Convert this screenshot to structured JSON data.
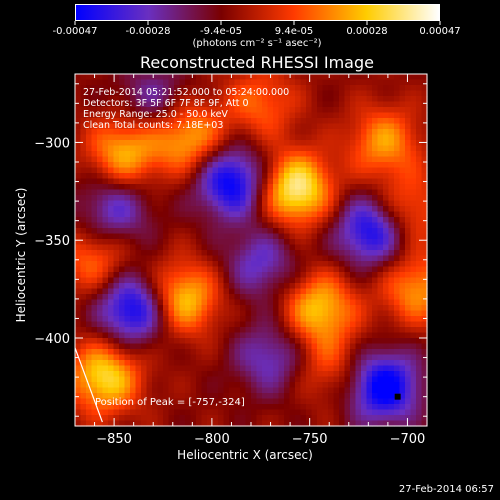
{
  "colorbar": {
    "units": "(photons cm⁻² s⁻¹ asec⁻²)",
    "tick_labels": [
      "-0.00047",
      "-0.00028",
      "-9.4e-05",
      "9.4e-05",
      "0.00028",
      "0.00047"
    ],
    "range": [
      -0.00047,
      0.00047
    ],
    "colors": [
      "#0000ff",
      "#6a2fc0",
      "#7a0000",
      "#ff3a00",
      "#ffcc00",
      "#ffffff"
    ]
  },
  "footer": {
    "date": "27-Feb-2014 06:57"
  },
  "chart_data": {
    "type": "heatmap",
    "title": "Reconstructed RHESSI Image",
    "xlabel": "Heliocentric X (arcsec)",
    "ylabel": "Heliocentric Y (arcsec)",
    "xlim": [
      -870,
      -690
    ],
    "ylim": [
      -445,
      -265
    ],
    "x_ticks": [
      -850,
      -800,
      -750,
      -700
    ],
    "x_tick_labels": [
      "−850",
      "−800",
      "−750",
      "−700"
    ],
    "y_ticks": [
      -300,
      -350,
      -400
    ],
    "y_tick_labels": [
      "−300",
      "−350",
      "−400"
    ],
    "annotations": [
      "27-Feb-2014 05:21:52.000 to 05:24:00.000",
      "Detectors: 3F 5F 6F 7F 8F 9F, Att 0",
      "Energy Range: 25.0 - 50.0 keV",
      "Clean     Total counts: 7.18E+03"
    ],
    "peak_label": "Position of Peak = [-757,-324]",
    "peak": [
      -757,
      -324
    ],
    "marker": [
      -705,
      -430
    ],
    "bright_blobs": [
      {
        "x": -757,
        "y": -324,
        "level": 1.0
      },
      {
        "x": -815,
        "y": -380,
        "level": 0.8
      },
      {
        "x": -745,
        "y": -385,
        "level": 0.75
      },
      {
        "x": -855,
        "y": -420,
        "level": 0.85
      },
      {
        "x": -812,
        "y": -298,
        "level": 0.7
      },
      {
        "x": -845,
        "y": -305,
        "level": 0.7
      },
      {
        "x": -712,
        "y": -300,
        "level": 0.6
      },
      {
        "x": -695,
        "y": -375,
        "level": 0.6
      },
      {
        "x": -700,
        "y": -335,
        "level": 0.5
      },
      {
        "x": -860,
        "y": -360,
        "level": 0.5
      },
      {
        "x": -775,
        "y": -280,
        "level": 0.45
      },
      {
        "x": -740,
        "y": -415,
        "level": 0.35
      }
    ],
    "dark_blobs": [
      {
        "x": -790,
        "y": -320,
        "level": -0.9
      },
      {
        "x": -840,
        "y": -385,
        "level": -0.9
      },
      {
        "x": -718,
        "y": -345,
        "level": -0.85
      },
      {
        "x": -712,
        "y": -425,
        "level": -0.95
      },
      {
        "x": -775,
        "y": -362,
        "level": -0.5
      },
      {
        "x": -850,
        "y": -335,
        "level": -0.55
      },
      {
        "x": -770,
        "y": -410,
        "level": -0.5
      },
      {
        "x": -830,
        "y": -278,
        "level": -0.4
      }
    ]
  }
}
